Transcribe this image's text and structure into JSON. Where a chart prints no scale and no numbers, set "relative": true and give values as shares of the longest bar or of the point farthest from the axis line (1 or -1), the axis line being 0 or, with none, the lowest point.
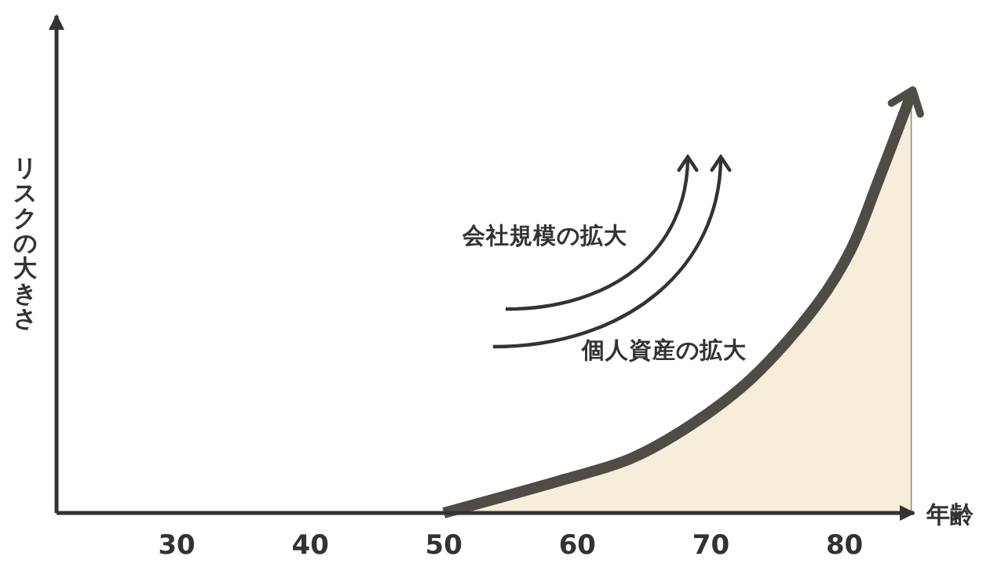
{
  "chart_data": {
    "type": "area",
    "relative": true,
    "xlabel": "年齢",
    "ylabel": "リスクの大きさ",
    "x": [
      50,
      59,
      64,
      68.5,
      73,
      78,
      80.5,
      82.5,
      85
    ],
    "xlim": [
      21,
      85.2
    ],
    "xticks": [
      30,
      40,
      50,
      60,
      70,
      80
    ],
    "tick_labels": "x",
    "series": [
      {
        "color": "#f7eddb",
        "values": [
          0,
          0.08,
          0.13,
          0.21,
          0.32,
          0.5,
          0.63,
          0.79,
          1
        ]
      }
    ],
    "annotations": [
      "会社規模の拡大",
      "個人資産の拡大"
    ]
  }
}
